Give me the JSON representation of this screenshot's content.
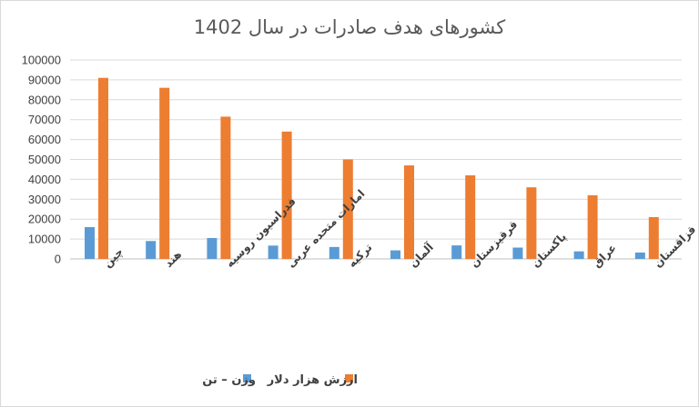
{
  "chart_data": {
    "type": "bar",
    "title": "کشورهای هدف صادرات در سال 1402",
    "categories": [
      "چین",
      "هند",
      "فدراسیون روسیه",
      "امارات متحده عربی",
      "ترکیه",
      "آلمان",
      "قرقیزستان",
      "پاکستان",
      "عراق",
      "قزاقستان"
    ],
    "series": [
      {
        "name": "وزن – تن",
        "color": "#5b9bd5",
        "values": [
          16000,
          9000,
          10500,
          6700,
          6000,
          4300,
          6800,
          5700,
          3800,
          3200
        ]
      },
      {
        "name": "ارزش هزار دلار",
        "color": "#ed7d31",
        "values": [
          91000,
          86000,
          71500,
          64000,
          50000,
          47000,
          42000,
          36000,
          32000,
          21000
        ]
      }
    ],
    "ylim": [
      0,
      100000
    ],
    "yticks": [
      "0",
      "10000",
      "20000",
      "30000",
      "40000",
      "50000",
      "60000",
      "70000",
      "80000",
      "90000",
      "100000"
    ],
    "grid": true,
    "legend_position": "bottom"
  }
}
